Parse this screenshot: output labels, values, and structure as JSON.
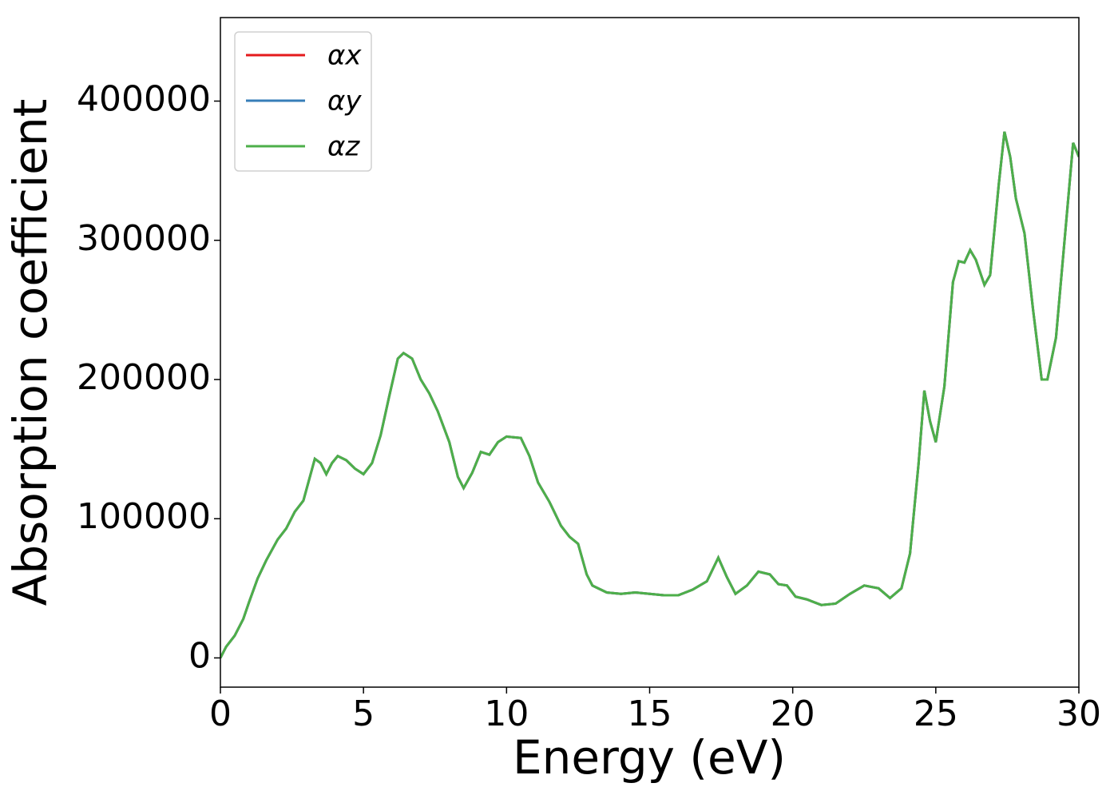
{
  "chart_data": {
    "type": "line",
    "xlabel": "Energy (eV)",
    "ylabel": "Absorption coefficient",
    "x": [
      0,
      0.2,
      0.5,
      0.8,
      1.0,
      1.3,
      1.6,
      2.0,
      2.3,
      2.6,
      2.9,
      3.1,
      3.3,
      3.5,
      3.7,
      3.9,
      4.1,
      4.4,
      4.7,
      5.0,
      5.3,
      5.6,
      5.9,
      6.2,
      6.4,
      6.7,
      7.0,
      7.3,
      7.6,
      8.0,
      8.3,
      8.5,
      8.8,
      9.1,
      9.4,
      9.7,
      10.0,
      10.5,
      10.8,
      11.1,
      11.5,
      11.9,
      12.2,
      12.5,
      12.8,
      13.0,
      13.5,
      14.0,
      14.5,
      15.0,
      15.5,
      16.0,
      16.5,
      17.0,
      17.4,
      17.7,
      18.0,
      18.4,
      18.8,
      19.2,
      19.5,
      19.8,
      20.1,
      20.5,
      21.0,
      21.5,
      22.0,
      22.5,
      23.0,
      23.4,
      23.8,
      24.1,
      24.4,
      24.6,
      24.8,
      25.0,
      25.3,
      25.6,
      25.8,
      26.0,
      26.2,
      26.4,
      26.7,
      26.9,
      27.2,
      27.4,
      27.6,
      27.8,
      28.1,
      28.4,
      28.7,
      28.9,
      29.2,
      29.5,
      29.8,
      30.0
    ],
    "series": [
      {
        "name": "αx",
        "color": "#e41a1c",
        "values": [
          0,
          8000,
          16000,
          28000,
          40000,
          57000,
          70000,
          85000,
          93000,
          105000,
          113000,
          128000,
          143000,
          140000,
          132000,
          140000,
          145000,
          142000,
          136000,
          132000,
          140000,
          160000,
          188000,
          215000,
          219000,
          215000,
          200000,
          190000,
          177000,
          155000,
          130000,
          122000,
          133000,
          148000,
          146000,
          155000,
          159000,
          158000,
          145000,
          126000,
          112000,
          95000,
          87000,
          82000,
          60000,
          52000,
          47000,
          46000,
          47000,
          46000,
          45000,
          45000,
          49000,
          55000,
          72000,
          58000,
          46000,
          52000,
          62000,
          60000,
          53000,
          52000,
          44000,
          42000,
          38000,
          39000,
          46000,
          52000,
          50000,
          43000,
          50000,
          75000,
          140000,
          192000,
          170000,
          155000,
          195000,
          270000,
          285000,
          284000,
          293000,
          286000,
          268000,
          275000,
          340000,
          378000,
          360000,
          330000,
          305000,
          250000,
          200000,
          200000,
          230000,
          300000,
          370000,
          360000
        ]
      },
      {
        "name": "αy",
        "color": "#377eb8",
        "values": [
          0,
          8000,
          16000,
          28000,
          40000,
          57000,
          70000,
          85000,
          93000,
          105000,
          113000,
          128000,
          143000,
          140000,
          132000,
          140000,
          145000,
          142000,
          136000,
          132000,
          140000,
          160000,
          188000,
          215000,
          219000,
          215000,
          200000,
          190000,
          177000,
          155000,
          130000,
          122000,
          133000,
          148000,
          146000,
          155000,
          159000,
          158000,
          145000,
          126000,
          112000,
          95000,
          87000,
          82000,
          60000,
          52000,
          47000,
          46000,
          47000,
          46000,
          45000,
          45000,
          49000,
          55000,
          72000,
          58000,
          46000,
          52000,
          62000,
          60000,
          53000,
          52000,
          44000,
          42000,
          38000,
          39000,
          46000,
          52000,
          50000,
          43000,
          50000,
          75000,
          140000,
          192000,
          170000,
          155000,
          195000,
          270000,
          285000,
          284000,
          293000,
          286000,
          268000,
          275000,
          340000,
          378000,
          360000,
          330000,
          305000,
          250000,
          200000,
          200000,
          230000,
          300000,
          370000,
          360000
        ]
      },
      {
        "name": "αz",
        "color": "#4daf4a",
        "values": [
          0,
          8000,
          16000,
          28000,
          40000,
          57000,
          70000,
          85000,
          93000,
          105000,
          113000,
          128000,
          143000,
          140000,
          132000,
          140000,
          145000,
          142000,
          136000,
          132000,
          140000,
          160000,
          188000,
          215000,
          219000,
          215000,
          200000,
          190000,
          177000,
          155000,
          130000,
          122000,
          133000,
          148000,
          146000,
          155000,
          159000,
          158000,
          145000,
          126000,
          112000,
          95000,
          87000,
          82000,
          60000,
          52000,
          47000,
          46000,
          47000,
          46000,
          45000,
          45000,
          49000,
          55000,
          72000,
          58000,
          46000,
          52000,
          62000,
          60000,
          53000,
          52000,
          44000,
          42000,
          38000,
          39000,
          46000,
          52000,
          50000,
          43000,
          50000,
          75000,
          140000,
          192000,
          170000,
          155000,
          195000,
          270000,
          285000,
          284000,
          293000,
          286000,
          268000,
          275000,
          340000,
          378000,
          360000,
          330000,
          305000,
          250000,
          200000,
          200000,
          230000,
          300000,
          370000,
          360000
        ]
      }
    ],
    "xlim": [
      0,
      30
    ],
    "xticks": [
      0,
      5,
      10,
      15,
      20,
      25,
      30
    ],
    "ylim": [
      -21000,
      460000
    ],
    "yticks": [
      0,
      100000,
      200000,
      300000,
      400000
    ],
    "grid": false,
    "legend": "upper left"
  }
}
